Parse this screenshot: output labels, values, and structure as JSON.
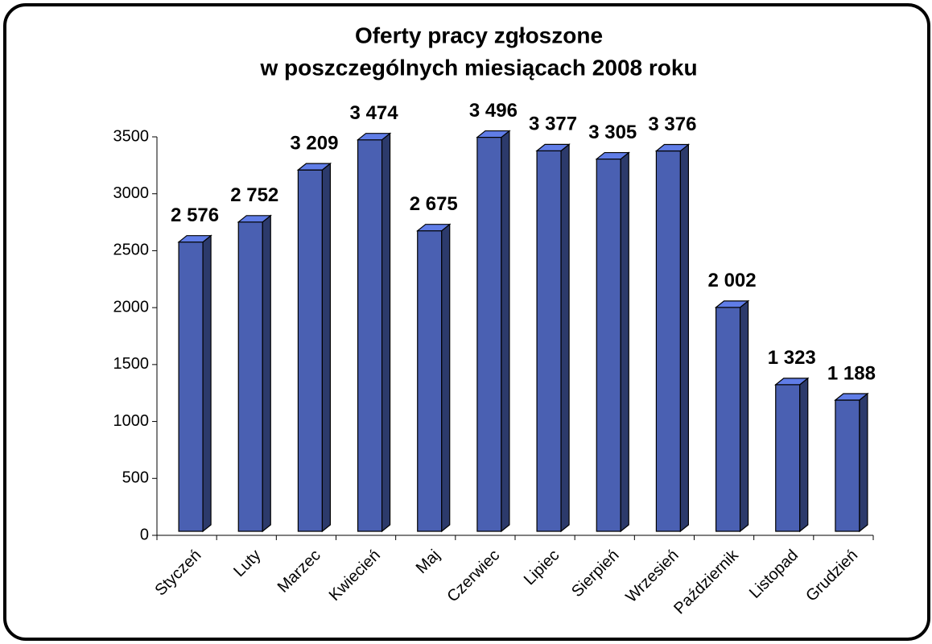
{
  "chart_data": {
    "type": "bar3d",
    "title": [
      "Oferty pracy zgłoszone",
      "w poszczególnych miesiącach 2008 roku"
    ],
    "categories": [
      "Styczeń",
      "Luty",
      "Marzec",
      "Kwiecień",
      "Maj",
      "Czerwiec",
      "Lipiec",
      "Sierpień",
      "Wrzesień",
      "Październik",
      "Listopad",
      "Grudzień"
    ],
    "values": [
      2576,
      2752,
      3209,
      3474,
      2675,
      3496,
      3377,
      3305,
      3376,
      2002,
      1323,
      1188
    ],
    "value_labels": [
      "2 576",
      "2 752",
      "3 209",
      "3 474",
      "2 675",
      "3 496",
      "3 377",
      "3 305",
      "3 376",
      "2 002",
      "1 323",
      "1 188"
    ],
    "color": "#4a60b2",
    "ylim": [
      0,
      3500
    ],
    "yticks": [
      0,
      500,
      1000,
      1500,
      2000,
      2500,
      3000,
      3500
    ]
  }
}
